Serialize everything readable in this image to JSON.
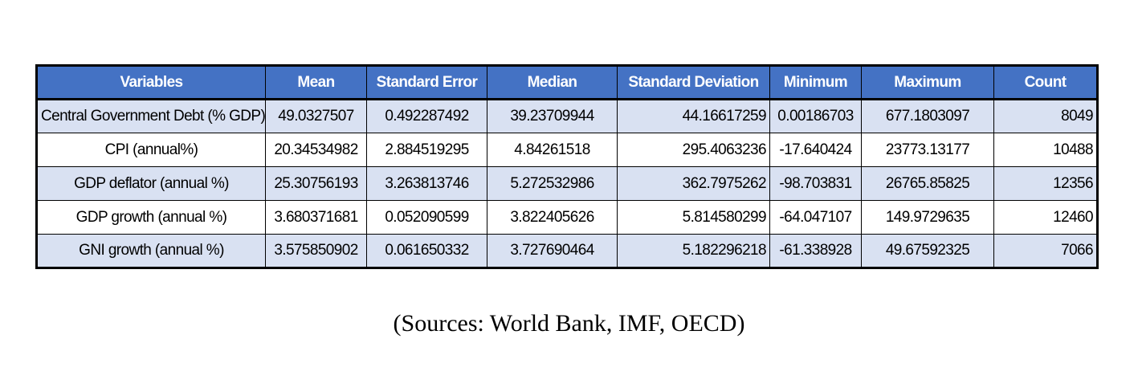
{
  "table": {
    "headers": {
      "variables": "Variables",
      "mean": "Mean",
      "standard_error": "Standard Error",
      "median": "Median",
      "standard_deviation": "Standard Deviation",
      "minimum": "Minimum",
      "maximum": "Maximum",
      "count": "Count"
    },
    "rows": [
      {
        "variable": "Central Government Debt (% GDP)",
        "mean": "49.0327507",
        "standard_error": "0.492287492",
        "median": "39.23709944",
        "standard_deviation": "44.16617259",
        "minimum": "0.00186703",
        "maximum": "677.1803097",
        "count": "8049"
      },
      {
        "variable": "CPI (annual%)",
        "mean": "20.34534982",
        "standard_error": "2.884519295",
        "median": "4.84261518",
        "standard_deviation": "295.4063236",
        "minimum": "-17.640424",
        "maximum": "23773.13177",
        "count": "10488"
      },
      {
        "variable": "GDP deflator (annual %)",
        "mean": "25.30756193",
        "standard_error": "3.263813746",
        "median": "5.272532986",
        "standard_deviation": "362.7975262",
        "minimum": "-98.703831",
        "maximum": "26765.85825",
        "count": "12356"
      },
      {
        "variable": "GDP growth (annual %)",
        "mean": "3.680371681",
        "standard_error": "0.052090599",
        "median": "3.822405626",
        "standard_deviation": "5.814580299",
        "minimum": "-64.047107",
        "maximum": "149.9729635",
        "count": "12460"
      },
      {
        "variable": "GNI growth (annual %)",
        "mean": "3.575850902",
        "standard_error": "0.061650332",
        "median": "3.727690464",
        "standard_deviation": "5.182296218",
        "minimum": "-61.338928",
        "maximum": "49.67592325",
        "count": "7066"
      }
    ]
  },
  "caption": "(Sources: World Bank, IMF, OECD)",
  "colors": {
    "header_background": "#4472c4",
    "header_text": "#ffffff",
    "band_row_background": "#d9e1f2",
    "plain_row_background": "#ffffff",
    "border": "#000000"
  }
}
